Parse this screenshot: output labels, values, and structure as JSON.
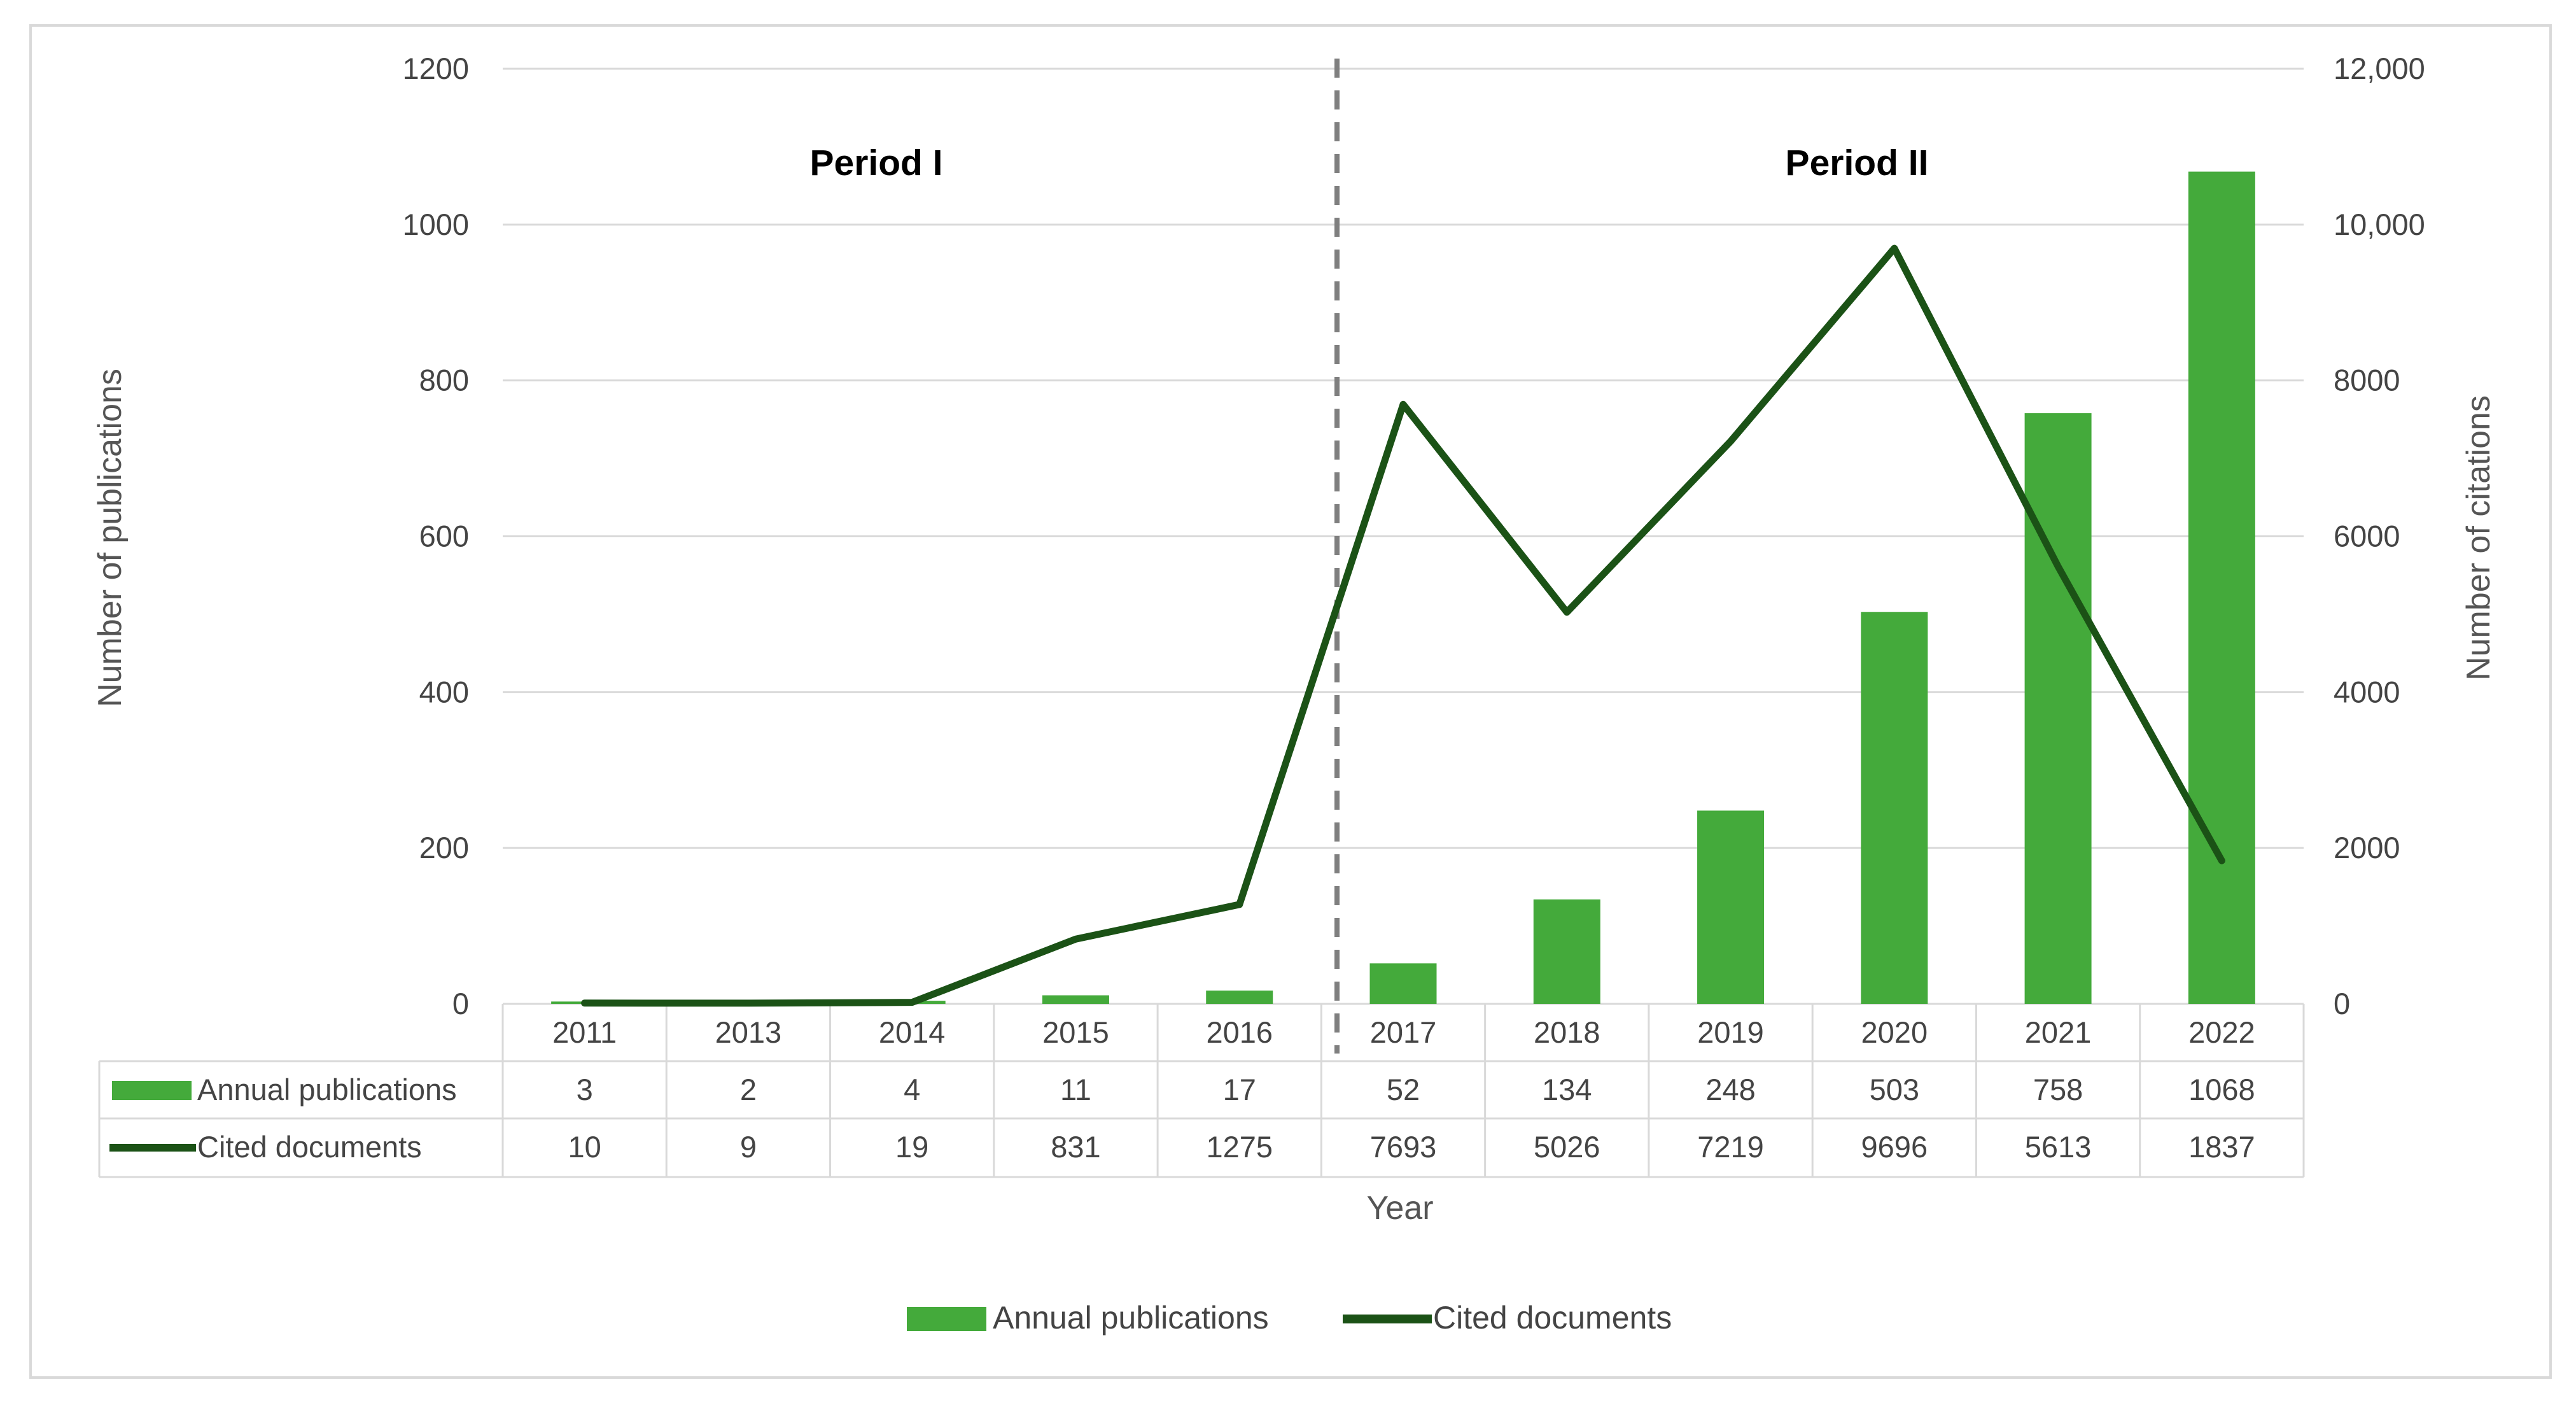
{
  "chart_data": {
    "type": "bar",
    "categories": [
      "2011",
      "2013",
      "2014",
      "2015",
      "2016",
      "2017",
      "2018",
      "2019",
      "2020",
      "2021",
      "2022"
    ],
    "series": [
      {
        "name": "Annual publications",
        "type": "bar",
        "axis": "left",
        "color": "#44AA3B",
        "values": [
          3,
          2,
          4,
          11,
          17,
          52,
          134,
          248,
          503,
          758,
          1068
        ]
      },
      {
        "name": "Cited documents",
        "type": "line",
        "axis": "right",
        "color": "#1B5216",
        "values": [
          10,
          9,
          19,
          831,
          1275,
          7693,
          5026,
          7219,
          9696,
          5613,
          1837
        ]
      }
    ],
    "xlabel": "Year",
    "ylabel": "Number of publications",
    "y2label": "Number of citations",
    "ylim": [
      0,
      1200
    ],
    "y2lim": [
      0,
      12000
    ],
    "yticks": [
      "0",
      "200",
      "400",
      "600",
      "800",
      "1000",
      "1200"
    ],
    "y2ticks": [
      "0",
      "2000",
      "4000",
      "6000",
      "8000",
      "10,000",
      "12,000"
    ],
    "annotations": [
      "Period I",
      "Period II"
    ],
    "period_divider_between": [
      "2016",
      "2017"
    ],
    "grid": true,
    "legend": "bottom",
    "data_table": true,
    "gridline_color": "#D9D9D9",
    "divider_color": "#7F7F7F"
  }
}
